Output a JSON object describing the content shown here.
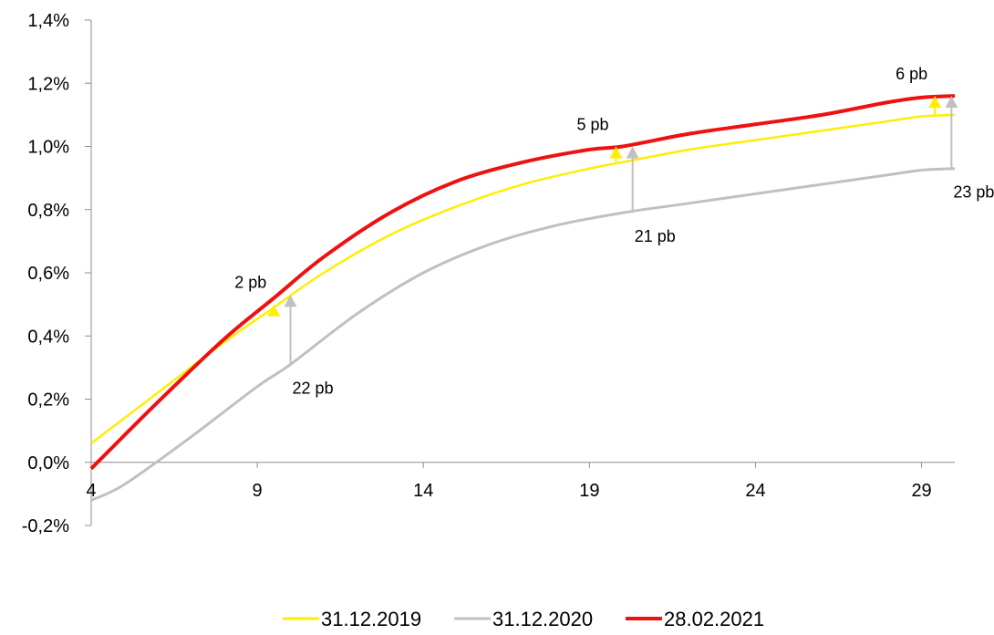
{
  "chart_data": {
    "type": "line",
    "title": "",
    "xlabel": "",
    "ylabel": "",
    "xlim": [
      4,
      30
    ],
    "ylim": [
      -0.2,
      1.4
    ],
    "x_ticks": [
      {
        "value": 4,
        "label": "4"
      },
      {
        "value": 9,
        "label": "9"
      },
      {
        "value": 14,
        "label": "14"
      },
      {
        "value": 19,
        "label": "19"
      },
      {
        "value": 24,
        "label": "24"
      },
      {
        "value": 29,
        "label": "29"
      }
    ],
    "y_ticks": [
      {
        "value": -0.2,
        "label": "-0,2%"
      },
      {
        "value": 0.0,
        "label": "0,0%"
      },
      {
        "value": 0.2,
        "label": "0,2%"
      },
      {
        "value": 0.4,
        "label": "0,4%"
      },
      {
        "value": 0.6,
        "label": "0,6%"
      },
      {
        "value": 0.8,
        "label": "0,8%"
      },
      {
        "value": 1.0,
        "label": "1,0%"
      },
      {
        "value": 1.2,
        "label": "1,2%"
      },
      {
        "value": 1.4,
        "label": "1,4%"
      }
    ],
    "grid": false,
    "legend_position": "bottom",
    "series": [
      {
        "name": "31.12.2019",
        "color": "#ffee00",
        "x": [
          4,
          6,
          8,
          9.5,
          11,
          13,
          15,
          17,
          19,
          20,
          22,
          24,
          26,
          28,
          29,
          30
        ],
        "y": [
          0.06,
          0.22,
          0.38,
          0.49,
          0.6,
          0.72,
          0.81,
          0.88,
          0.93,
          0.95,
          0.99,
          1.02,
          1.05,
          1.08,
          1.095,
          1.1
        ]
      },
      {
        "name": "31.12.2020",
        "color": "#c0c0c0",
        "x": [
          4,
          5,
          7,
          9,
          10,
          12,
          14,
          16,
          18,
          20,
          22,
          24,
          26,
          28,
          29,
          30
        ],
        "y": [
          -0.12,
          -0.07,
          0.08,
          0.24,
          0.31,
          0.47,
          0.6,
          0.69,
          0.75,
          0.79,
          0.82,
          0.85,
          0.88,
          0.91,
          0.925,
          0.93
        ]
      },
      {
        "name": "28.02.2021",
        "color": "#ee1111",
        "x": [
          4,
          6,
          8,
          9.5,
          11,
          13,
          15,
          17,
          19,
          20,
          22,
          24,
          26,
          28,
          29,
          30
        ],
        "y": [
          -0.02,
          0.19,
          0.39,
          0.52,
          0.65,
          0.79,
          0.89,
          0.95,
          0.99,
          1.0,
          1.04,
          1.07,
          1.1,
          1.14,
          1.155,
          1.16
        ]
      }
    ],
    "annotations": [
      {
        "x": 9.5,
        "from": 0.48,
        "to": 0.5,
        "label": "2 pb",
        "color": "#ffee00",
        "label_side": "top-left"
      },
      {
        "x": 10,
        "from": 0.31,
        "to": 0.53,
        "label": "22 pb",
        "color": "#c0c0c0",
        "label_side": "bottom"
      },
      {
        "x": 19.8,
        "from": 0.95,
        "to": 1.0,
        "label": "5 pb",
        "color": "#ffee00",
        "label_side": "top-left"
      },
      {
        "x": 20.3,
        "from": 0.79,
        "to": 1.0,
        "label": "21 pb",
        "color": "#c0c0c0",
        "label_side": "bottom"
      },
      {
        "x": 29.4,
        "from": 1.1,
        "to": 1.16,
        "label": "6 pb",
        "color": "#ffee00",
        "label_side": "top-left"
      },
      {
        "x": 29.9,
        "from": 0.93,
        "to": 1.16,
        "label": "23 pb",
        "color": "#c0c0c0",
        "label_side": "bottom"
      }
    ]
  }
}
